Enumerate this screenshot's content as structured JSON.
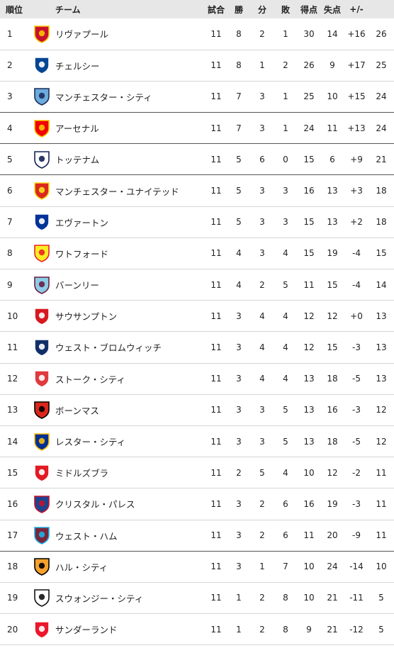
{
  "headers": {
    "rank": "順位",
    "team": "チーム",
    "played": "試合",
    "won": "勝",
    "drawn": "分",
    "lost": "敗",
    "gf": "得点",
    "ga": "失点",
    "gd": "+/-",
    "pts": ""
  },
  "teams": [
    {
      "rank": "1",
      "name": "リヴァプール",
      "played": "11",
      "won": "8",
      "drawn": "2",
      "lost": "1",
      "gf": "30",
      "ga": "14",
      "gd": "+16",
      "pts": "26",
      "crest_icon": "liverpool-crest-icon",
      "c1": "#c8102e",
      "c2": "#f6c500"
    },
    {
      "rank": "2",
      "name": "チェルシー",
      "played": "11",
      "won": "8",
      "drawn": "1",
      "lost": "2",
      "gf": "26",
      "ga": "9",
      "gd": "+17",
      "pts": "25",
      "crest_icon": "chelsea-crest-icon",
      "c1": "#034694",
      "c2": "#ffffff"
    },
    {
      "rank": "3",
      "name": "マンチェスター・シティ",
      "played": "11",
      "won": "7",
      "drawn": "3",
      "lost": "1",
      "gf": "25",
      "ga": "10",
      "gd": "+15",
      "pts": "24",
      "crest_icon": "manchester-city-crest-icon",
      "c1": "#6cabdd",
      "c2": "#1c2c5b"
    },
    {
      "rank": "4",
      "name": "アーセナル",
      "played": "11",
      "won": "7",
      "drawn": "3",
      "lost": "1",
      "gf": "24",
      "ga": "11",
      "gd": "+13",
      "pts": "24",
      "crest_icon": "arsenal-crest-icon",
      "c1": "#ef0107",
      "c2": "#f6c500"
    },
    {
      "rank": "5",
      "name": "トッテナム",
      "played": "11",
      "won": "5",
      "drawn": "6",
      "lost": "0",
      "gf": "15",
      "ga": "6",
      "gd": "+9",
      "pts": "21",
      "crest_icon": "tottenham-crest-icon",
      "c1": "#ffffff",
      "c2": "#132257"
    },
    {
      "rank": "6",
      "name": "マンチェスター・ユナイテッド",
      "played": "11",
      "won": "5",
      "drawn": "3",
      "lost": "3",
      "gf": "16",
      "ga": "13",
      "gd": "+3",
      "pts": "18",
      "crest_icon": "manchester-united-crest-icon",
      "c1": "#da291c",
      "c2": "#fbe122"
    },
    {
      "rank": "7",
      "name": "エヴァートン",
      "played": "11",
      "won": "5",
      "drawn": "3",
      "lost": "3",
      "gf": "15",
      "ga": "13",
      "gd": "+2",
      "pts": "18",
      "crest_icon": "everton-crest-icon",
      "c1": "#003399",
      "c2": "#ffffff"
    },
    {
      "rank": "8",
      "name": "ワトフォード",
      "played": "11",
      "won": "4",
      "drawn": "3",
      "lost": "4",
      "gf": "15",
      "ga": "19",
      "gd": "-4",
      "pts": "15",
      "crest_icon": "watford-crest-icon",
      "c1": "#fbee23",
      "c2": "#ed2127"
    },
    {
      "rank": "9",
      "name": "バーンリー",
      "played": "11",
      "won": "4",
      "drawn": "2",
      "lost": "5",
      "gf": "11",
      "ga": "15",
      "gd": "-4",
      "pts": "14",
      "crest_icon": "burnley-crest-icon",
      "c1": "#8ccce5",
      "c2": "#6c1d45"
    },
    {
      "rank": "10",
      "name": "サウサンプトン",
      "played": "11",
      "won": "3",
      "drawn": "4",
      "lost": "4",
      "gf": "12",
      "ga": "12",
      "gd": "+0",
      "pts": "13",
      "crest_icon": "southampton-crest-icon",
      "c1": "#d71920",
      "c2": "#ffffff"
    },
    {
      "rank": "11",
      "name": "ウェスト・ブロムウィッチ",
      "played": "11",
      "won": "3",
      "drawn": "4",
      "lost": "4",
      "gf": "12",
      "ga": "15",
      "gd": "-3",
      "pts": "13",
      "crest_icon": "west-brom-crest-icon",
      "c1": "#122f67",
      "c2": "#ffffff"
    },
    {
      "rank": "12",
      "name": "ストーク・シティ",
      "played": "11",
      "won": "3",
      "drawn": "4",
      "lost": "4",
      "gf": "13",
      "ga": "18",
      "gd": "-5",
      "pts": "13",
      "crest_icon": "stoke-city-crest-icon",
      "c1": "#e03a3e",
      "c2": "#ffffff"
    },
    {
      "rank": "13",
      "name": "ボーンマス",
      "played": "11",
      "won": "3",
      "drawn": "3",
      "lost": "5",
      "gf": "13",
      "ga": "16",
      "gd": "-3",
      "pts": "12",
      "crest_icon": "bournemouth-crest-icon",
      "c1": "#da291c",
      "c2": "#000000"
    },
    {
      "rank": "14",
      "name": "レスター・シティ",
      "played": "11",
      "won": "3",
      "drawn": "3",
      "lost": "5",
      "gf": "13",
      "ga": "18",
      "gd": "-5",
      "pts": "12",
      "crest_icon": "leicester-city-crest-icon",
      "c1": "#003090",
      "c2": "#fdbe11"
    },
    {
      "rank": "15",
      "name": "ミドルズブラ",
      "played": "11",
      "won": "2",
      "drawn": "5",
      "lost": "4",
      "gf": "10",
      "ga": "12",
      "gd": "-2",
      "pts": "11",
      "crest_icon": "middlesbrough-crest-icon",
      "c1": "#e11b22",
      "c2": "#ffffff"
    },
    {
      "rank": "16",
      "name": "クリスタル・パレス",
      "played": "11",
      "won": "3",
      "drawn": "2",
      "lost": "6",
      "gf": "16",
      "ga": "19",
      "gd": "-3",
      "pts": "11",
      "crest_icon": "crystal-palace-crest-icon",
      "c1": "#1b458f",
      "c2": "#c4122e"
    },
    {
      "rank": "17",
      "name": "ウェスト・ハム",
      "played": "11",
      "won": "3",
      "drawn": "2",
      "lost": "6",
      "gf": "11",
      "ga": "20",
      "gd": "-9",
      "pts": "11",
      "crest_icon": "west-ham-crest-icon",
      "c1": "#7a263a",
      "c2": "#1bb1e7"
    },
    {
      "rank": "18",
      "name": "ハル・シティ",
      "played": "11",
      "won": "3",
      "drawn": "1",
      "lost": "7",
      "gf": "10",
      "ga": "24",
      "gd": "-14",
      "pts": "10",
      "crest_icon": "hull-city-crest-icon",
      "c1": "#f5a12d",
      "c2": "#000000"
    },
    {
      "rank": "19",
      "name": "スウォンジー・シティ",
      "played": "11",
      "won": "1",
      "drawn": "2",
      "lost": "8",
      "gf": "10",
      "ga": "21",
      "gd": "-11",
      "pts": "5",
      "crest_icon": "swansea-city-crest-icon",
      "c1": "#ffffff",
      "c2": "#121212"
    },
    {
      "rank": "20",
      "name": "サンダーランド",
      "played": "11",
      "won": "1",
      "drawn": "2",
      "lost": "8",
      "gf": "9",
      "ga": "21",
      "gd": "-12",
      "pts": "5",
      "crest_icon": "sunderland-crest-icon",
      "c1": "#eb172b",
      "c2": "#ffffff"
    }
  ]
}
